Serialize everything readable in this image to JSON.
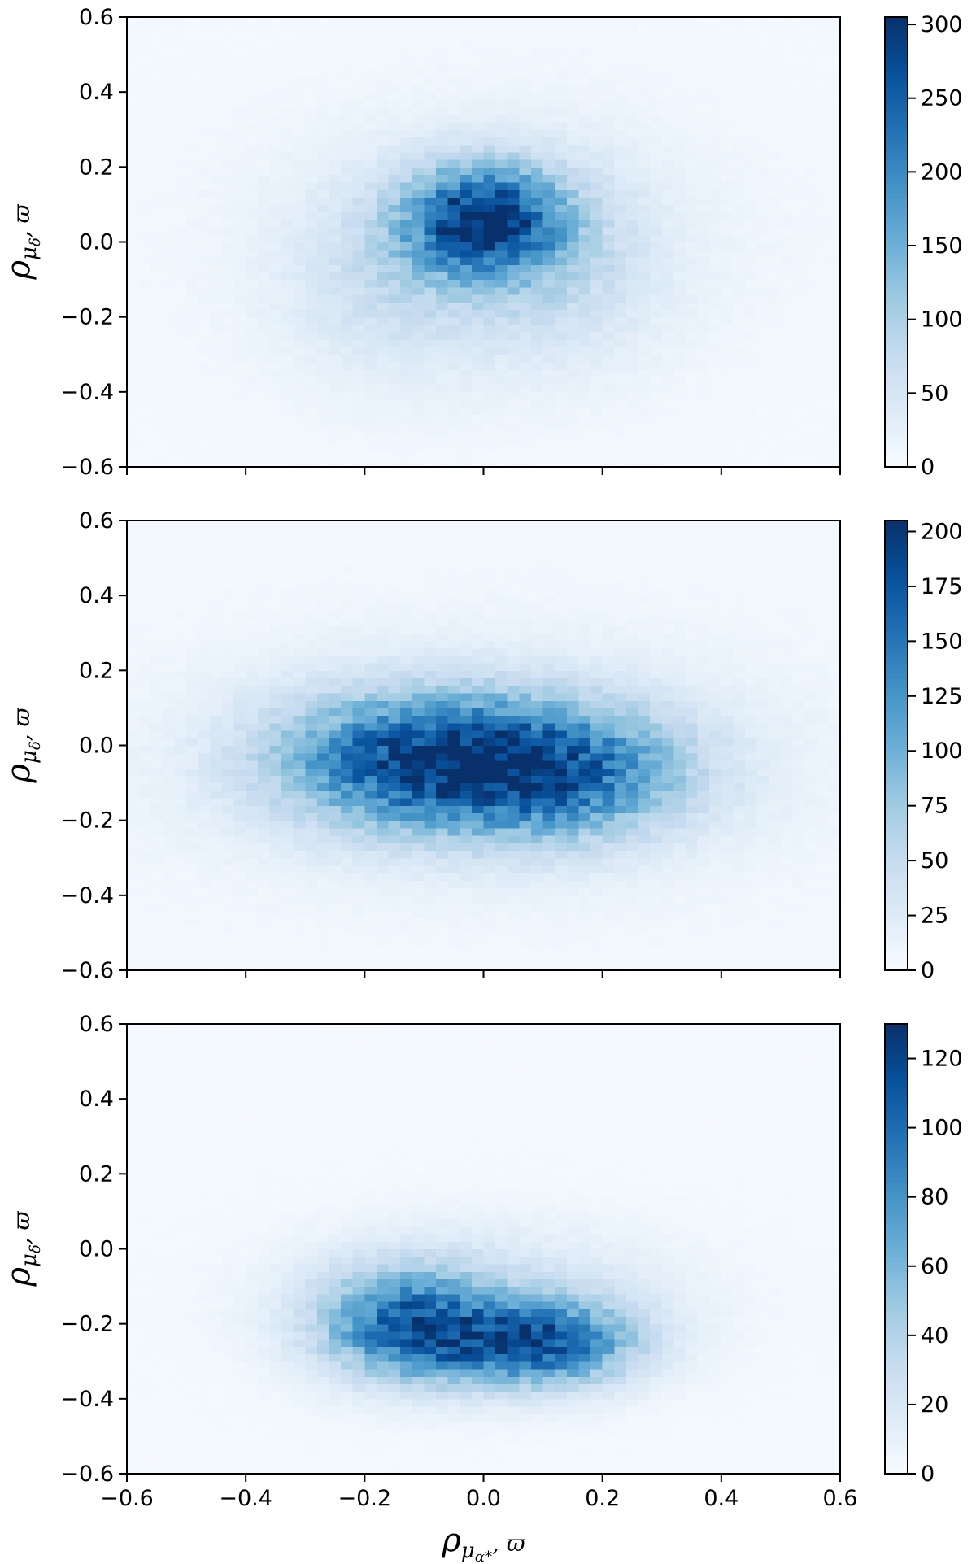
{
  "chart_data": [
    {
      "type": "heatmap",
      "title": "",
      "ylabel": {
        "base": "ρ",
        "sub": "μ",
        "subsub": "δ",
        "suffix": ", ϖ"
      },
      "xlabel": null,
      "xlim": [
        -0.6,
        0.6
      ],
      "ylim": [
        -0.6,
        0.6
      ],
      "x_ticks": [
        -0.6,
        -0.4,
        -0.2,
        0.0,
        0.2,
        0.4,
        0.6
      ],
      "x_tick_labels": [],
      "y_ticks": [
        -0.6,
        -0.4,
        -0.2,
        0.0,
        0.2,
        0.4,
        0.6
      ],
      "y_tick_labels": [
        "−0.6",
        "−0.4",
        "−0.2",
        "0.0",
        "0.2",
        "0.4",
        "0.6"
      ],
      "bins": [
        60,
        60
      ],
      "colormap": "Blues",
      "colorbar": {
        "range": [
          0,
          305
        ],
        "ticks": [
          0,
          50,
          100,
          150,
          200,
          250,
          300
        ],
        "tick_labels": [
          "0",
          "50",
          "100",
          "150",
          "200",
          "250",
          "300"
        ]
      },
      "components": [
        {
          "cx": 0.0,
          "cy": 0.06,
          "sx": 0.09,
          "sy": 0.1,
          "amp": 260
        },
        {
          "cx": -0.15,
          "cy": -0.1,
          "sx": 0.12,
          "sy": 0.18,
          "amp": 45
        },
        {
          "cx": 0.12,
          "cy": -0.05,
          "sx": 0.12,
          "sy": 0.18,
          "amp": 50
        },
        {
          "cx": 0.0,
          "cy": 0.0,
          "sx": 0.28,
          "sy": 0.25,
          "amp": 28
        }
      ],
      "background": 6
    },
    {
      "type": "heatmap",
      "title": "",
      "ylabel": {
        "base": "ρ",
        "sub": "μ",
        "subsub": "δ",
        "suffix": ", ϖ"
      },
      "xlabel": null,
      "xlim": [
        -0.6,
        0.6
      ],
      "ylim": [
        -0.6,
        0.6
      ],
      "x_ticks": [
        -0.6,
        -0.4,
        -0.2,
        0.0,
        0.2,
        0.4,
        0.6
      ],
      "x_tick_labels": [],
      "y_ticks": [
        -0.6,
        -0.4,
        -0.2,
        0.0,
        0.2,
        0.4,
        0.6
      ],
      "y_tick_labels": [
        "−0.6",
        "−0.4",
        "−0.2",
        "0.0",
        "0.2",
        "0.4",
        "0.6"
      ],
      "bins": [
        60,
        60
      ],
      "colormap": "Blues",
      "colorbar": {
        "range": [
          0,
          205
        ],
        "ticks": [
          0,
          25,
          50,
          75,
          100,
          125,
          150,
          175,
          200
        ],
        "tick_labels": [
          "0",
          "25",
          "50",
          "75",
          "100",
          "125",
          "150",
          "175",
          "200"
        ]
      },
      "components": [
        {
          "cx": -0.12,
          "cy": -0.04,
          "sx": 0.16,
          "sy": 0.12,
          "amp": 135
        },
        {
          "cx": 0.12,
          "cy": -0.07,
          "sx": 0.15,
          "sy": 0.12,
          "amp": 120
        },
        {
          "cx": 0.0,
          "cy": -0.04,
          "sx": 0.32,
          "sy": 0.2,
          "amp": 35
        }
      ],
      "background": 5
    },
    {
      "type": "heatmap",
      "title": "",
      "ylabel": {
        "base": "ρ",
        "sub": "μ",
        "subsub": "δ",
        "suffix": ", ϖ"
      },
      "xlabel": {
        "base": "ρ",
        "sub": "μ",
        "subsub": "α*",
        "suffix": ", ϖ"
      },
      "xlim": [
        -0.6,
        0.6
      ],
      "ylim": [
        -0.6,
        0.6
      ],
      "x_ticks": [
        -0.6,
        -0.4,
        -0.2,
        0.0,
        0.2,
        0.4,
        0.6
      ],
      "x_tick_labels": [
        "−0.6",
        "−0.4",
        "−0.2",
        "0.0",
        "0.2",
        "0.4",
        "0.6"
      ],
      "y_ticks": [
        -0.6,
        -0.4,
        -0.2,
        0.0,
        0.2,
        0.4,
        0.6
      ],
      "y_tick_labels": [
        "−0.6",
        "−0.4",
        "−0.2",
        "0.0",
        "0.2",
        "0.4",
        "0.6"
      ],
      "bins": [
        60,
        60
      ],
      "colormap": "Blues",
      "colorbar": {
        "range": [
          0,
          130
        ],
        "ticks": [
          0,
          20,
          40,
          60,
          80,
          100,
          120
        ],
        "tick_labels": [
          "0",
          "20",
          "40",
          "60",
          "80",
          "100",
          "120"
        ]
      },
      "components": [
        {
          "cx": -0.13,
          "cy": -0.2,
          "sx": 0.1,
          "sy": 0.1,
          "amp": 80
        },
        {
          "cx": 0.12,
          "cy": -0.25,
          "sx": 0.1,
          "sy": 0.08,
          "amp": 75
        },
        {
          "cx": 0.0,
          "cy": -0.26,
          "sx": 0.1,
          "sy": 0.07,
          "amp": 35
        },
        {
          "cx": 0.0,
          "cy": -0.15,
          "sx": 0.22,
          "sy": 0.14,
          "amp": 25
        }
      ],
      "background": 2
    }
  ]
}
